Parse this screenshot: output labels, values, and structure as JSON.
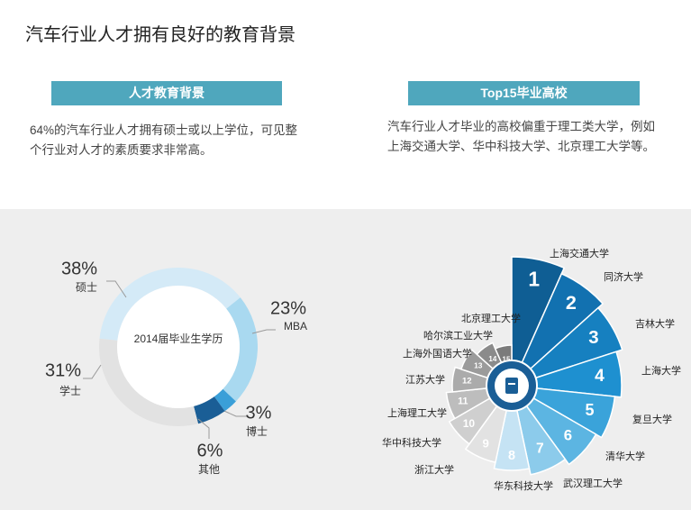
{
  "title": "汽车行业人才拥有良好的教育背景",
  "sections": [
    {
      "heading": "人才教育背景",
      "text": "64%的汽车行业人才拥有硕士或以上学位，可见整个行业对人才的素质要求非常高。"
    },
    {
      "heading": "Top15毕业高校",
      "text": "汽车行业人才毕业的高校偏重于理工类大学，例如上海交通大学、华中科技大学、北京理工大学等。"
    }
  ],
  "chart_data": [
    {
      "type": "donut",
      "center_label": "2014届毕业生学历",
      "categories": [
        "硕士",
        "MBA",
        "博士",
        "其他",
        "学士"
      ],
      "values": [
        38,
        23,
        3,
        6,
        31
      ],
      "value_labels": [
        "38%",
        "23%",
        "3%",
        "6%",
        "31%"
      ],
      "colors": [
        "#d4eaf7",
        "#a9d9f0",
        "#3a9fd8",
        "#1a5e96",
        "#e2e2e2"
      ]
    },
    {
      "type": "rose",
      "categories": [
        "上海交通大学",
        "同济大学",
        "吉林大学",
        "上海大学",
        "复旦大学",
        "清华大学",
        "武汉理工大学",
        "华东科技大学",
        "浙江大学",
        "华中科技大学",
        "上海理工大学",
        "江苏大学",
        "上海外国语大学",
        "哈尔滨工业大学",
        "北京理工大学"
      ],
      "ranks": [
        1,
        2,
        3,
        4,
        5,
        6,
        7,
        8,
        9,
        10,
        11,
        12,
        13,
        14,
        15
      ],
      "colors": [
        "#0f5e94",
        "#1271b0",
        "#1680c0",
        "#1e90d0",
        "#3aa3da",
        "#5cb5e2",
        "#8ccbeb",
        "#c5e3f4",
        "#e2e2e2",
        "#cfcfcf",
        "#bdbdbd",
        "#ababab",
        "#9b9b9b",
        "#8b8b8b",
        "#7b7b7b"
      ]
    }
  ]
}
